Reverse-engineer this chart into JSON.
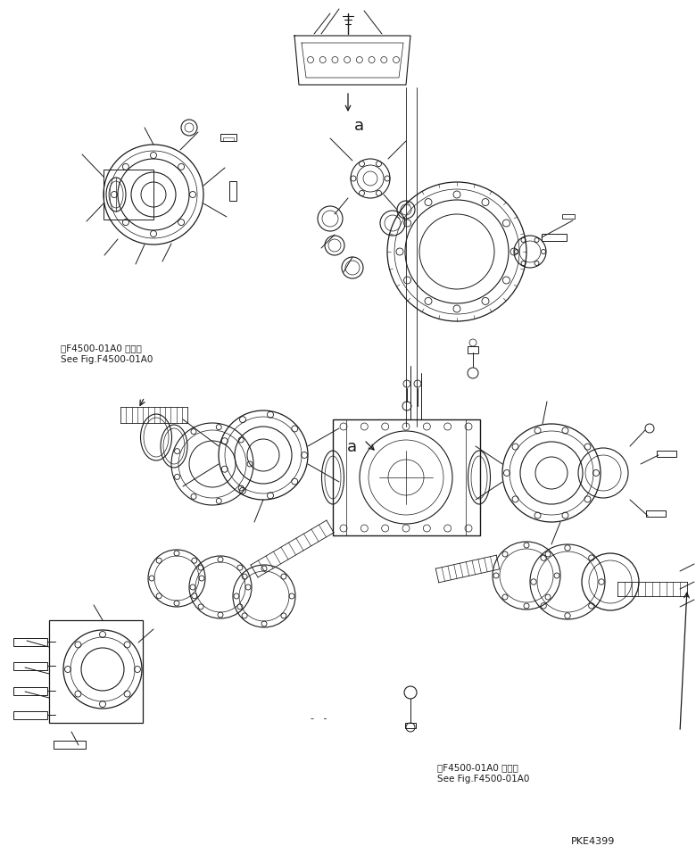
{
  "bg_color": "#ffffff",
  "line_color": "#1a1a1a",
  "fig_width": 7.8,
  "fig_height": 9.57,
  "dpi": 100,
  "texts": {
    "label_top_left_1": "第F4500-01A0 図参照",
    "label_top_left_2": "See Fig.F4500-01A0",
    "label_bot_right_1": "第F4500-01A0 図参照",
    "label_bot_right_2": "See Fig.F4500-01A0",
    "label_a_top": "a",
    "label_a_mid": "a",
    "label_pke": "PKE4399",
    "label_dash": "-   -"
  }
}
